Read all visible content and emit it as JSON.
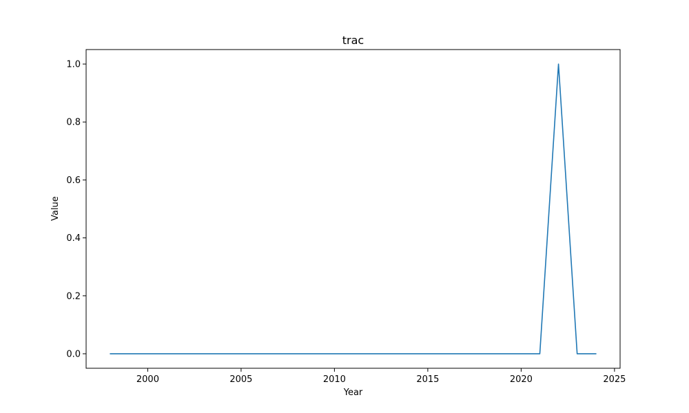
{
  "chart_data": {
    "type": "line",
    "title": "trac",
    "xlabel": "Year",
    "ylabel": "Value",
    "xlim": [
      1996.7,
      2025.3
    ],
    "ylim": [
      -0.05,
      1.05
    ],
    "xticks": [
      2000,
      2005,
      2010,
      2015,
      2020,
      2025
    ],
    "yticks": [
      0.0,
      0.2,
      0.4,
      0.6,
      0.8,
      1.0
    ],
    "xtick_labels": [
      "2000",
      "2005",
      "2010",
      "2015",
      "2020",
      "2025"
    ],
    "ytick_labels": [
      "0.0",
      "0.2",
      "0.4",
      "0.6",
      "0.8",
      "1.0"
    ],
    "grid": false,
    "series": [
      {
        "color": "#1f77b4",
        "x": [
          1998,
          1999,
          2000,
          2001,
          2002,
          2003,
          2004,
          2005,
          2006,
          2007,
          2008,
          2009,
          2010,
          2011,
          2012,
          2013,
          2014,
          2015,
          2016,
          2017,
          2018,
          2019,
          2020,
          2021,
          2022,
          2023,
          2024
        ],
        "y": [
          0,
          0,
          0,
          0,
          0,
          0,
          0,
          0,
          0,
          0,
          0,
          0,
          0,
          0,
          0,
          0,
          0,
          0,
          0,
          0,
          0,
          0,
          0,
          0,
          1,
          0,
          0
        ]
      }
    ]
  }
}
